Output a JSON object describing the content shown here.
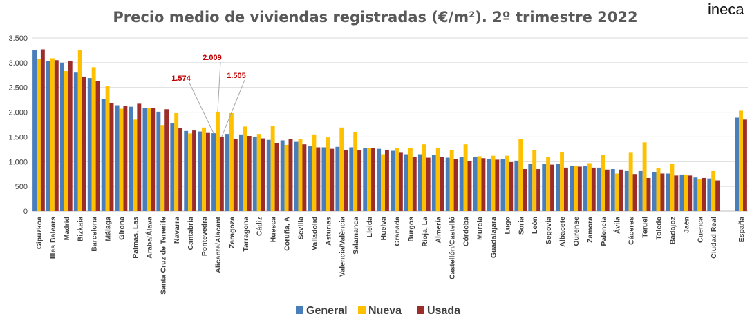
{
  "brand": {
    "logo_text": "ineca"
  },
  "chart_data": {
    "type": "bar",
    "title": "Precio medio de viviendas registradas (€/m²). 2º trimestre 2022",
    "xlabel": "",
    "ylabel": "",
    "ylim": [
      0,
      3500
    ],
    "yticks": [
      0,
      500,
      1000,
      1500,
      2000,
      2500,
      3000,
      3500
    ],
    "ytick_labels": [
      "0",
      "500",
      "1.000",
      "1.500",
      "2.000",
      "2.500",
      "3.000",
      "3.500"
    ],
    "grid": true,
    "legend_position": "bottom",
    "colors": {
      "General": "#4a7ebb",
      "Nueva": "#ffc000",
      "Usada": "#9b2d2a",
      "annotation": "#c00000"
    },
    "categories": [
      "Gipuzkoa",
      "Illes Balears",
      "Madrid",
      "Bizkaia",
      "Barcelona",
      "Málaga",
      "Girona",
      "Palmas, Las",
      "Araba/Álava",
      "Santa Cruz de Tenerife",
      "Navarra",
      "Cantabria",
      "Pontevedra",
      "Alicante/Alacant",
      "Zaragoza",
      "Tarragona",
      "Cádiz",
      "Huesca",
      "Coruña, A",
      "Sevilla",
      "Valladolid",
      "Asturias",
      "Valencia/València",
      "Salamanca",
      "Lleida",
      "Huelva",
      "Granada",
      "Burgos",
      "Rioja, La",
      "Almería",
      "Castellón/Castelló",
      "Córdoba",
      "Murcia",
      "Guadalajara",
      "Lugo",
      "Soria",
      "León",
      "Segovia",
      "Albacete",
      "Ourense",
      "Zamora",
      "Palencia",
      "Ávila",
      "Cáceres",
      "Teruel",
      "Toledo",
      "Badajoz",
      "Jaén",
      "Cuenca",
      "Ciudad Real",
      "",
      "España"
    ],
    "series": [
      {
        "name": "General",
        "values": [
          3260,
          3030,
          3000,
          2800,
          2690,
          2270,
          2140,
          2110,
          2090,
          2010,
          1780,
          1620,
          1610,
          1574,
          1560,
          1550,
          1500,
          1440,
          1430,
          1400,
          1310,
          1290,
          1300,
          1290,
          1280,
          1260,
          1220,
          1150,
          1150,
          1140,
          1080,
          1090,
          1090,
          1060,
          1050,
          1020,
          960,
          960,
          960,
          910,
          910,
          880,
          850,
          810,
          810,
          790,
          760,
          740,
          680,
          660,
          null,
          1890
        ]
      },
      {
        "name": "Nueva",
        "values": [
          3070,
          3090,
          2830,
          3260,
          2910,
          2530,
          2070,
          1850,
          2080,
          1740,
          1980,
          1570,
          1690,
          2009,
          1980,
          1710,
          1560,
          1720,
          1340,
          1460,
          1550,
          1490,
          1690,
          1590,
          1280,
          1150,
          1280,
          1280,
          1350,
          1270,
          1240,
          1350,
          1110,
          1120,
          1120,
          1460,
          1240,
          1090,
          1200,
          920,
          970,
          1130,
          760,
          1180,
          1390,
          870,
          950,
          740,
          640,
          810,
          null,
          2030
        ]
      },
      {
        "name": "Usada",
        "values": [
          3270,
          3050,
          3030,
          2720,
          2630,
          2180,
          2120,
          2170,
          2090,
          2060,
          1680,
          1630,
          1580,
          1505,
          1460,
          1520,
          1470,
          1380,
          1460,
          1350,
          1290,
          1260,
          1240,
          1240,
          1270,
          1230,
          1180,
          1090,
          1080,
          1090,
          1050,
          1010,
          1070,
          1040,
          990,
          850,
          850,
          940,
          880,
          900,
          880,
          840,
          840,
          750,
          670,
          760,
          720,
          720,
          670,
          620,
          null,
          1850
        ]
      }
    ],
    "annotations": [
      {
        "label": "1.574",
        "category": "Alicante/Alacant",
        "series": "General",
        "value": 1574
      },
      {
        "label": "2.009",
        "category": "Alicante/Alacant",
        "series": "Nueva",
        "value": 2009
      },
      {
        "label": "1.505",
        "category": "Alicante/Alacant",
        "series": "Usada",
        "value": 1505
      }
    ]
  }
}
